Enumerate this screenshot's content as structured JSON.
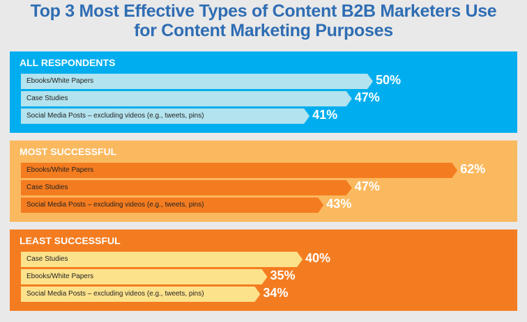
{
  "chart_data": {
    "type": "bar",
    "title": "Top 3 Most Effective Types of Content B2B Marketers Use for Content Marketing Purposes",
    "title_lines": [
      "Top 3 Most Effective Types of Content B2B Marketers Use",
      "for Content Marketing Purposes"
    ],
    "groups": [
      {
        "name": "ALL RESPONDENTS",
        "panel_color": "#00aeef",
        "bar_color": "#b3e3ee",
        "categories": [
          "Ebooks/White Papers",
          "Case Studies",
          "Social Media Posts – excluding videos (e.g., tweets, pins)"
        ],
        "values": [
          50,
          47,
          41
        ],
        "labels": [
          "50%",
          "47%",
          "41%"
        ]
      },
      {
        "name": "MOST SUCCESSFUL",
        "panel_color": "#fbb95f",
        "bar_color": "#f47c20",
        "categories": [
          "Ebooks/White Papers",
          "Case Studies",
          "Social Media Posts – excluding videos (e.g., tweets, pins)"
        ],
        "values": [
          62,
          47,
          43
        ],
        "labels": [
          "62%",
          "47%",
          "43%"
        ]
      },
      {
        "name": "LEAST SUCCESSFUL",
        "panel_color": "#f47c20",
        "bar_color": "#fde28c",
        "categories": [
          "Case Studies",
          "Ebooks/White Papers",
          "Social Media Posts – excluding videos (e.g., tweets, pins)"
        ],
        "values": [
          40,
          35,
          34
        ],
        "labels": [
          "40%",
          "35%",
          "34%"
        ]
      }
    ],
    "unit": "%"
  }
}
